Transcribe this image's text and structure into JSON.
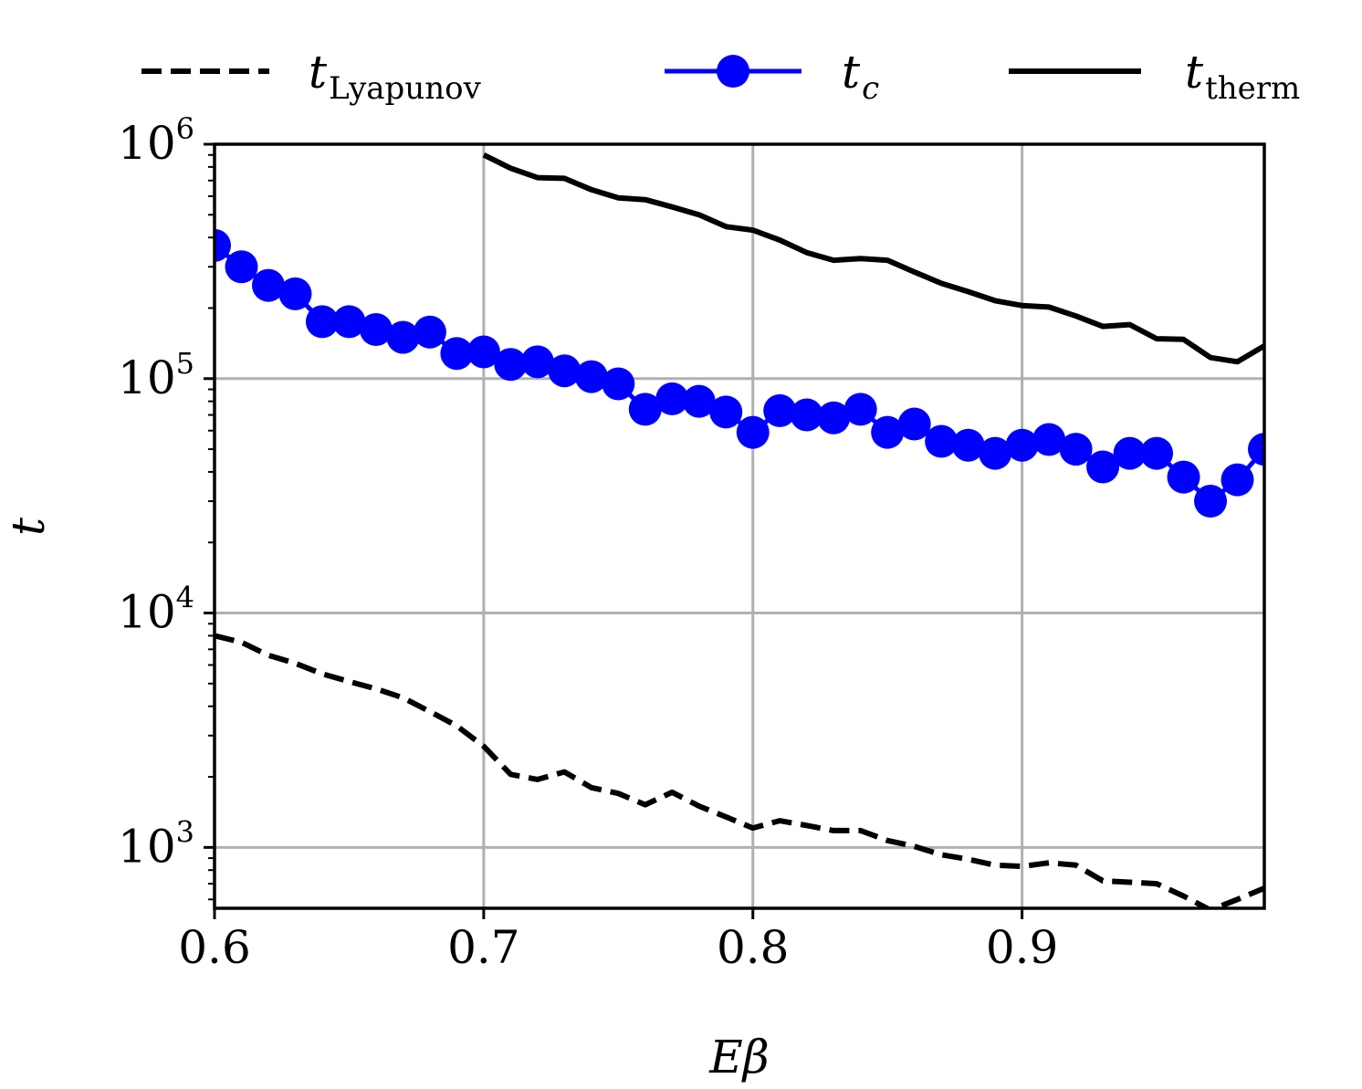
{
  "chart_data": {
    "type": "line",
    "title": "",
    "xlabel": "Eβ",
    "ylabel": "t",
    "yscale": "log",
    "xlim": [
      0.6,
      0.99
    ],
    "ylim": [
      550,
      1000000
    ],
    "grid": true,
    "legend_position": "top (outside, above plot)",
    "x_ticks": [
      {
        "value": 0.6,
        "label": "0.6"
      },
      {
        "value": 0.7,
        "label": "0.7"
      },
      {
        "value": 0.8,
        "label": "0.8"
      },
      {
        "value": 0.9,
        "label": "0.9"
      }
    ],
    "y_ticks": [
      {
        "value": 1000,
        "base": "10",
        "exp": "3"
      },
      {
        "value": 10000,
        "base": "10",
        "exp": "4"
      },
      {
        "value": 100000,
        "base": "10",
        "exp": "5"
      },
      {
        "value": 1000000,
        "base": "10",
        "exp": "6"
      }
    ],
    "series": [
      {
        "name": "t_Lyapunov",
        "legend_main": "t",
        "legend_sub": "Lyapunov",
        "sub_italic": false,
        "color": "#000000",
        "style": "dashed",
        "marker": "none",
        "x": [
          0.6,
          0.61,
          0.62,
          0.63,
          0.64,
          0.65,
          0.66,
          0.67,
          0.68,
          0.69,
          0.7,
          0.71,
          0.72,
          0.73,
          0.74,
          0.75,
          0.76,
          0.77,
          0.78,
          0.79,
          0.8,
          0.81,
          0.82,
          0.83,
          0.84,
          0.85,
          0.86,
          0.87,
          0.88,
          0.89,
          0.9,
          0.91,
          0.92,
          0.93,
          0.94,
          0.95,
          0.96,
          0.97,
          0.98,
          0.99
        ],
        "values": [
          8000,
          7500,
          6600,
          6100,
          5500,
          5100,
          4750,
          4350,
          3800,
          3300,
          2700,
          2050,
          1950,
          2100,
          1800,
          1700,
          1520,
          1720,
          1500,
          1350,
          1210,
          1300,
          1240,
          1180,
          1180,
          1070,
          1010,
          930,
          890,
          840,
          830,
          860,
          840,
          720,
          710,
          700,
          620,
          540,
          600,
          670
        ]
      },
      {
        "name": "t_c",
        "legend_main": "t",
        "legend_sub": "c",
        "sub_italic": true,
        "color": "#0000ff",
        "style": "solid",
        "marker": "circle",
        "x": [
          0.6,
          0.61,
          0.62,
          0.63,
          0.64,
          0.65,
          0.66,
          0.67,
          0.68,
          0.69,
          0.7,
          0.71,
          0.72,
          0.73,
          0.74,
          0.75,
          0.76,
          0.77,
          0.78,
          0.79,
          0.8,
          0.81,
          0.82,
          0.83,
          0.84,
          0.85,
          0.86,
          0.87,
          0.88,
          0.89,
          0.9,
          0.91,
          0.92,
          0.93,
          0.94,
          0.95,
          0.96,
          0.97,
          0.98,
          0.99
        ],
        "values": [
          370000,
          300000,
          250000,
          230000,
          175000,
          175000,
          162000,
          150000,
          158000,
          128000,
          130000,
          115000,
          118000,
          108000,
          102000,
          95000,
          74000,
          82000,
          80000,
          72000,
          59000,
          73000,
          70000,
          68000,
          74000,
          59000,
          64000,
          54000,
          52000,
          48000,
          52000,
          55000,
          50000,
          42000,
          48000,
          48000,
          38000,
          30000,
          37000,
          50000
        ]
      },
      {
        "name": "t_therm",
        "legend_main": "t",
        "legend_sub": "therm",
        "sub_italic": false,
        "color": "#000000",
        "style": "solid",
        "marker": "none",
        "x": [
          0.7,
          0.71,
          0.72,
          0.73,
          0.74,
          0.75,
          0.76,
          0.77,
          0.78,
          0.79,
          0.8,
          0.81,
          0.82,
          0.83,
          0.84,
          0.85,
          0.86,
          0.87,
          0.88,
          0.89,
          0.9,
          0.91,
          0.92,
          0.93,
          0.94,
          0.95,
          0.96,
          0.97,
          0.98,
          0.99
        ],
        "values": [
          900000,
          790000,
          720000,
          715000,
          640000,
          590000,
          580000,
          540000,
          500000,
          445000,
          430000,
          390000,
          345000,
          320000,
          325000,
          320000,
          285000,
          255000,
          235000,
          215000,
          205000,
          202000,
          185000,
          167000,
          170000,
          148000,
          147000,
          123000,
          118000,
          138000
        ]
      }
    ]
  }
}
